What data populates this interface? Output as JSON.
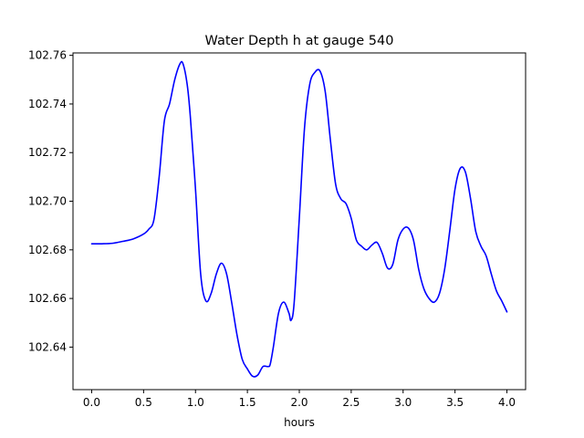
{
  "chart_data": {
    "type": "line",
    "title": "Water Depth h at gauge 540",
    "xlabel": "hours",
    "ylabel": "",
    "xlim": [
      -0.18,
      4.18
    ],
    "ylim": [
      102.6225,
      102.761
    ],
    "grid": false,
    "legend": "none",
    "x_ticks": [
      0.0,
      0.5,
      1.0,
      1.5,
      2.0,
      2.5,
      3.0,
      3.5,
      4.0
    ],
    "x_tick_labels": [
      "0.0",
      "0.5",
      "1.0",
      "1.5",
      "2.0",
      "2.5",
      "3.0",
      "3.5",
      "4.0"
    ],
    "y_ticks": [
      102.64,
      102.66,
      102.68,
      102.7,
      102.72,
      102.74,
      102.76
    ],
    "y_tick_labels": [
      "102.64",
      "102.66",
      "102.68",
      "102.70",
      "102.72",
      "102.74",
      "102.76"
    ],
    "series": [
      {
        "color": "#0000ff",
        "x": [
          0.0,
          0.1,
          0.2,
          0.3,
          0.4,
          0.5,
          0.55,
          0.6,
          0.65,
          0.7,
          0.75,
          0.8,
          0.85,
          0.88,
          0.92,
          0.95,
          1.0,
          1.05,
          1.1,
          1.15,
          1.2,
          1.25,
          1.3,
          1.35,
          1.4,
          1.45,
          1.5,
          1.55,
          1.6,
          1.65,
          1.7,
          1.72,
          1.75,
          1.8,
          1.85,
          1.9,
          1.92,
          1.95,
          2.0,
          2.05,
          2.1,
          2.15,
          2.2,
          2.25,
          2.3,
          2.35,
          2.4,
          2.45,
          2.5,
          2.55,
          2.6,
          2.65,
          2.7,
          2.75,
          2.8,
          2.85,
          2.9,
          2.95,
          3.0,
          3.05,
          3.1,
          3.15,
          3.2,
          3.25,
          3.3,
          3.35,
          3.4,
          3.45,
          3.5,
          3.55,
          3.6,
          3.65,
          3.7,
          3.75,
          3.8,
          3.85,
          3.9,
          3.95,
          4.0
        ],
        "y": [
          102.6825,
          102.6825,
          102.6827,
          102.6835,
          102.6845,
          102.6865,
          102.6885,
          102.6925,
          102.71,
          102.733,
          102.74,
          102.75,
          102.7565,
          102.7565,
          102.748,
          102.735,
          102.705,
          102.67,
          102.659,
          102.662,
          102.67,
          102.6745,
          102.67,
          102.658,
          102.645,
          102.635,
          102.631,
          102.628,
          102.6285,
          102.632,
          102.632,
          102.633,
          102.64,
          102.654,
          102.6585,
          102.654,
          102.651,
          102.658,
          102.693,
          102.73,
          102.748,
          102.753,
          102.7535,
          102.745,
          102.725,
          102.707,
          102.701,
          102.699,
          102.693,
          102.684,
          102.6815,
          102.68,
          102.682,
          102.683,
          102.6785,
          102.6725,
          102.674,
          102.684,
          102.6885,
          102.689,
          102.684,
          102.672,
          102.664,
          102.66,
          102.6585,
          102.662,
          102.672,
          102.688,
          102.705,
          102.7135,
          102.712,
          102.701,
          102.6875,
          102.6815,
          102.6775,
          102.67,
          102.663,
          102.659,
          102.6545
        ]
      }
    ]
  }
}
